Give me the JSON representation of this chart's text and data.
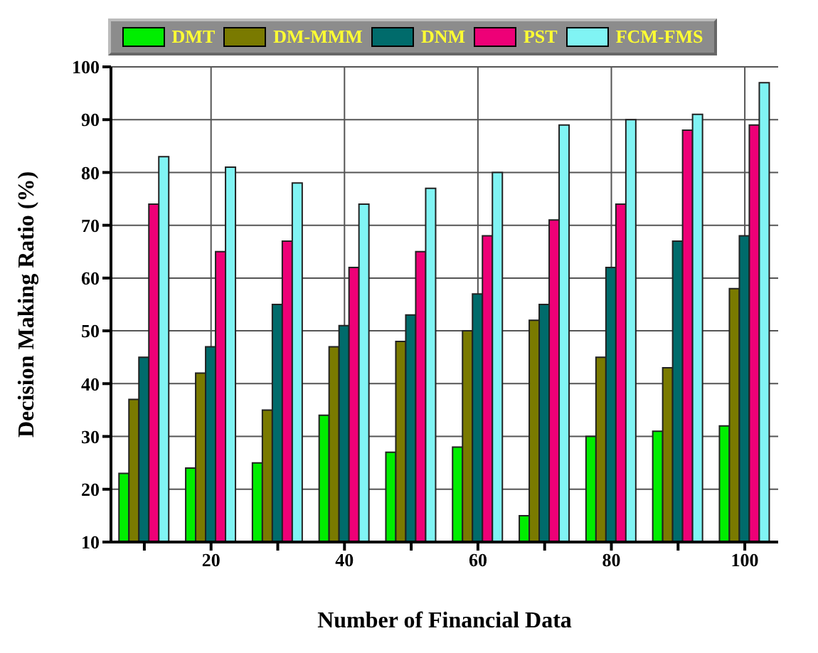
{
  "chart_data": {
    "type": "bar",
    "xlabel": "Number of Financial Data",
    "ylabel": "Decision Making Ratio (%)",
    "categories": [
      null,
      "20",
      null,
      "40",
      null,
      "60",
      null,
      "80",
      null,
      "100"
    ],
    "series": [
      {
        "name": "DMT",
        "color": "#00ee00",
        "values": [
          23,
          24,
          25,
          34,
          27,
          28,
          15,
          30,
          31,
          32
        ]
      },
      {
        "name": "DM-MMM",
        "color": "#7a7a00",
        "values": [
          37,
          42,
          35,
          47,
          48,
          50,
          52,
          45,
          43,
          58
        ]
      },
      {
        "name": "DNM",
        "color": "#006b6b",
        "values": [
          45,
          47,
          55,
          51,
          53,
          57,
          55,
          62,
          67,
          68
        ]
      },
      {
        "name": "PST",
        "color": "#ee0077",
        "values": [
          74,
          65,
          67,
          62,
          65,
          68,
          71,
          74,
          88,
          89
        ]
      },
      {
        "name": "FCM-FMS",
        "color": "#80f4f4",
        "values": [
          83,
          81,
          78,
          74,
          77,
          80,
          89,
          90,
          91,
          97
        ]
      }
    ],
    "ylim": [
      10,
      100
    ],
    "yticks": [
      10,
      20,
      30,
      40,
      50,
      60,
      70,
      80,
      90,
      100
    ],
    "grid": true,
    "legend": "top"
  }
}
